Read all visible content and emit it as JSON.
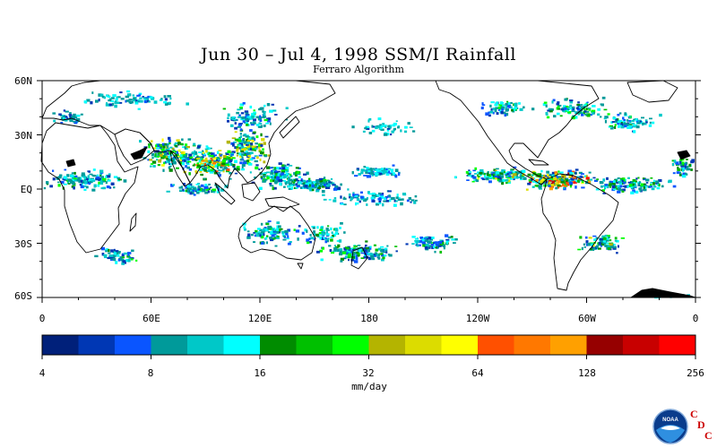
{
  "title": "Jun 30 – Jul 4, 1998 SSM/I Rainfall",
  "subtitle": "Ferraro Algorithm",
  "latitude_labels": [
    "60N",
    "30N",
    "EQ",
    "30S",
    "60S"
  ],
  "longitude_labels": [
    "0",
    "60E",
    "120E",
    "180",
    "120W",
    "60W",
    "0"
  ],
  "colorbar": {
    "tick_labels": [
      "4",
      "8",
      "16",
      "32",
      "64",
      "128",
      "256"
    ],
    "units": "mm/day",
    "colors": [
      "#00207a",
      "#0037b4",
      "#0a55ff",
      "#009a9a",
      "#00c8c8",
      "#00ffff",
      "#008c00",
      "#00c000",
      "#00ff00",
      "#b4b400",
      "#dcdc00",
      "#ffff00",
      "#ff5000",
      "#ff7800",
      "#ffa000",
      "#960000",
      "#c80000",
      "#ff0000"
    ]
  },
  "logo": {
    "name": "noaa-cdc-logo",
    "text": "NOAA",
    "letters": [
      "C",
      "D",
      "C"
    ],
    "accent": "#cc0000"
  },
  "map": {
    "projection": "equirectangular",
    "lon_range": [
      0,
      360
    ],
    "lat_range": [
      -60,
      60
    ],
    "fill": "rain-cells"
  }
}
